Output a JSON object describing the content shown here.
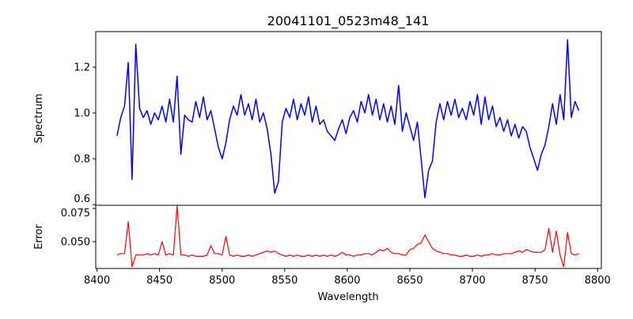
{
  "chart_data": [
    {
      "type": "line",
      "title": "20041101_0523m48_141",
      "xlabel": "",
      "ylabel": "Spectrum",
      "xlim": [
        8399,
        8803
      ],
      "ylim": [
        0.597,
        1.355
      ],
      "yticks": [
        0.6,
        0.8,
        1.0,
        1.2
      ],
      "ytick_labels": [
        "0.6",
        "0.8",
        "1.0",
        "1.2"
      ],
      "grid": false,
      "series": [
        {
          "name": "Spectrum",
          "color": "#0000ff",
          "x_start": 8416,
          "x_step": 3,
          "values": [
            0.9,
            0.98,
            1.03,
            1.22,
            0.71,
            1.3,
            1.02,
            0.98,
            1.01,
            0.95,
            1.0,
            0.97,
            1.03,
            0.96,
            1.06,
            0.96,
            1.16,
            0.82,
            0.99,
            0.97,
            0.96,
            1.05,
            0.98,
            1.07,
            0.97,
            1.01,
            0.93,
            0.85,
            0.8,
            0.87,
            0.97,
            1.03,
            0.99,
            1.08,
            0.99,
            1.04,
            0.97,
            1.06,
            0.96,
            1.0,
            0.93,
            0.82,
            0.65,
            0.7,
            0.96,
            1.02,
            0.98,
            1.06,
            0.97,
            1.04,
            0.99,
            1.07,
            0.96,
            1.03,
            0.95,
            0.97,
            0.92,
            0.9,
            0.88,
            0.93,
            0.97,
            0.91,
            0.98,
            1.01,
            0.96,
            1.05,
            1.0,
            1.08,
            0.99,
            1.06,
            0.97,
            1.04,
            0.96,
            1.03,
            0.95,
            1.12,
            0.92,
            1.0,
            0.94,
            0.88,
            0.96,
            0.8,
            0.63,
            0.75,
            0.79,
            0.96,
            1.04,
            0.97,
            1.05,
            0.99,
            1.06,
            0.98,
            1.02,
            0.97,
            1.05,
            0.99,
            1.08,
            0.95,
            1.07,
            0.97,
            1.03,
            0.94,
            0.98,
            0.92,
            0.97,
            0.9,
            0.95,
            0.89,
            0.94,
            0.92,
            0.85,
            0.8,
            0.75,
            0.82,
            0.86,
            0.94,
            1.04,
            0.95,
            1.08,
            0.97,
            1.32,
            0.98,
            1.05,
            1.01
          ]
        }
      ]
    },
    {
      "type": "line",
      "title": "",
      "xlabel": "Wavelength",
      "ylabel": "Error",
      "xlim": [
        8399,
        8803
      ],
      "ylim": [
        0.0298,
        0.0774
      ],
      "xticks": [
        8400,
        8450,
        8500,
        8550,
        8600,
        8650,
        8700,
        8750,
        8800
      ],
      "xtick_labels": [
        "8400",
        "8450",
        "8500",
        "8550",
        "8600",
        "8650",
        "8700",
        "8750",
        "8800"
      ],
      "yticks": [
        0.05,
        0.075
      ],
      "ytick_labels": [
        "0.050",
        "0.075"
      ],
      "grid": false,
      "series": [
        {
          "name": "Error",
          "color": "#ff0000",
          "x_start": 8416,
          "x_step": 3,
          "values": [
            0.04,
            0.041,
            0.041,
            0.065,
            0.031,
            0.04,
            0.04,
            0.04,
            0.041,
            0.04,
            0.041,
            0.04,
            0.05,
            0.04,
            0.041,
            0.04,
            0.077,
            0.04,
            0.04,
            0.039,
            0.04,
            0.039,
            0.039,
            0.039,
            0.04,
            0.047,
            0.041,
            0.041,
            0.04,
            0.054,
            0.04,
            0.039,
            0.04,
            0.039,
            0.039,
            0.04,
            0.039,
            0.04,
            0.041,
            0.042,
            0.043,
            0.042,
            0.043,
            0.041,
            0.04,
            0.039,
            0.04,
            0.039,
            0.04,
            0.039,
            0.039,
            0.04,
            0.039,
            0.04,
            0.039,
            0.04,
            0.039,
            0.04,
            0.039,
            0.04,
            0.042,
            0.04,
            0.04,
            0.039,
            0.04,
            0.04,
            0.041,
            0.041,
            0.04,
            0.042,
            0.044,
            0.043,
            0.045,
            0.042,
            0.041,
            0.041,
            0.04,
            0.04,
            0.044,
            0.045,
            0.048,
            0.049,
            0.055,
            0.05,
            0.045,
            0.043,
            0.042,
            0.041,
            0.041,
            0.04,
            0.04,
            0.039,
            0.039,
            0.04,
            0.039,
            0.039,
            0.04,
            0.039,
            0.04,
            0.04,
            0.041,
            0.04,
            0.04,
            0.041,
            0.041,
            0.041,
            0.042,
            0.043,
            0.042,
            0.044,
            0.043,
            0.042,
            0.042,
            0.042,
            0.044,
            0.06,
            0.042,
            0.058,
            0.04,
            0.031,
            0.057,
            0.041,
            0.04,
            0.041
          ]
        }
      ]
    }
  ]
}
